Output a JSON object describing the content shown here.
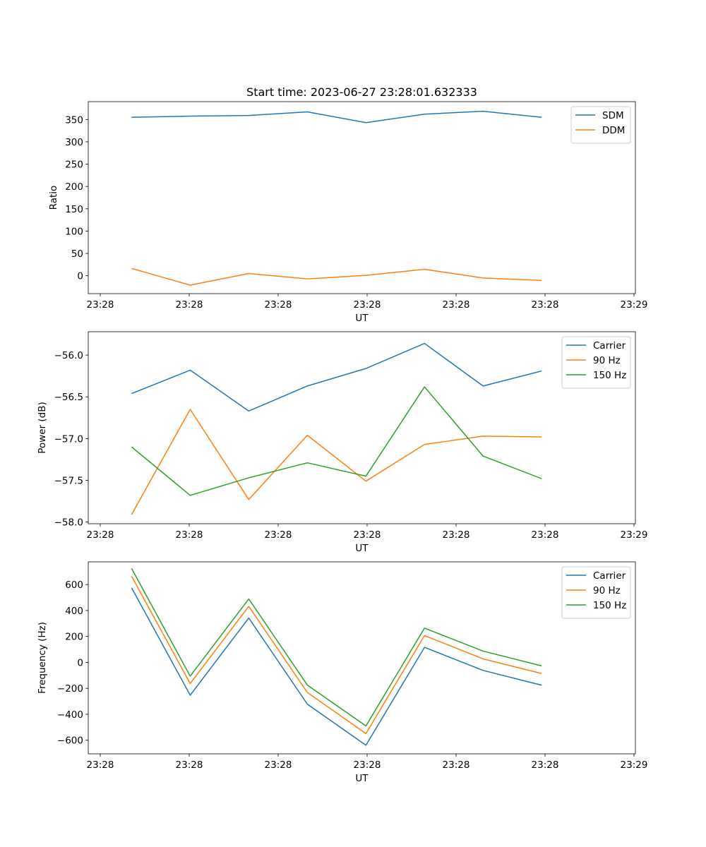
{
  "figure": {
    "title": "Start time: 2023-06-27 23:28:01.632333"
  },
  "chart_data": [
    {
      "type": "line",
      "title": "Start time: 2023-06-27 23:28:01.632333",
      "xlabel": "UT",
      "ylabel": "Ratio",
      "x_tick_labels": [
        "23:28",
        "23:28",
        "23:28",
        "23:28",
        "23:28",
        "23:28",
        "23:28"
      ],
      "x_tick_positions": [
        -0.25,
        0.75,
        1.75,
        2.75,
        3.75,
        4.75,
        5.75
      ],
      "x_last_tick_label": "23:29",
      "xlim": [
        -0.74,
        8.6
      ],
      "ylim": [
        -40,
        390
      ],
      "y_ticks": [
        0,
        50,
        100,
        150,
        200,
        250,
        300,
        350
      ],
      "x": [
        0,
        1,
        2,
        3,
        4,
        5,
        6,
        7
      ],
      "legend_position": "top-right",
      "series": [
        {
          "name": "SDM",
          "color": "#1f77b4",
          "values": [
            355,
            357.5,
            359,
            367,
            343,
            362,
            368.5,
            355
          ]
        },
        {
          "name": "DDM",
          "color": "#ff7f0e",
          "values": [
            16.5,
            -21,
            5,
            -7,
            1,
            14.5,
            -5,
            -10.5
          ]
        }
      ]
    },
    {
      "type": "line",
      "xlabel": "UT",
      "ylabel": "Power (dB)",
      "x_tick_labels": [
        "23:28",
        "23:28",
        "23:28",
        "23:28",
        "23:28",
        "23:28",
        "23:28"
      ],
      "x_last_tick_label": "23:29",
      "xlim": [
        -0.74,
        8.6
      ],
      "ylim": [
        -58.02,
        -55.72
      ],
      "y_ticks": [
        -58.0,
        -57.5,
        -57.0,
        -56.5,
        -56.0
      ],
      "y_tick_labels": [
        "−58.0",
        "−57.5",
        "−57.0",
        "−56.5",
        "−56.0"
      ],
      "x": [
        0,
        1,
        2,
        3,
        4,
        5,
        6,
        7
      ],
      "legend_position": "top-right",
      "series": [
        {
          "name": "Carrier",
          "color": "#1f77b4",
          "values": [
            -56.46,
            -56.18,
            -56.67,
            -56.37,
            -56.16,
            -55.86,
            -56.37,
            -56.19
          ]
        },
        {
          "name": "90 Hz",
          "color": "#ff7f0e",
          "values": [
            -57.91,
            -56.65,
            -57.73,
            -56.96,
            -57.51,
            -57.07,
            -56.97,
            -56.98
          ]
        },
        {
          "name": "150 Hz",
          "color": "#2ca02c",
          "values": [
            -57.1,
            -57.68,
            -57.47,
            -57.29,
            -57.45,
            -56.38,
            -57.21,
            -57.48
          ]
        }
      ]
    },
    {
      "type": "line",
      "xlabel": "UT",
      "ylabel": "Frequency (Hz)",
      "x_tick_labels": [
        "23:28",
        "23:28",
        "23:28",
        "23:28",
        "23:28",
        "23:28",
        "23:28"
      ],
      "x_last_tick_label": "23:29",
      "xlim": [
        -0.74,
        8.6
      ],
      "ylim": [
        -705,
        775
      ],
      "y_ticks": [
        -600,
        -400,
        -200,
        0,
        200,
        400,
        600
      ],
      "y_tick_labels": [
        "−600",
        "−400",
        "−200",
        "0",
        "200",
        "400",
        "600"
      ],
      "x": [
        0,
        1,
        2,
        3,
        4,
        5,
        6,
        7
      ],
      "legend_position": "top-right",
      "series": [
        {
          "name": "Carrier",
          "color": "#1f77b4",
          "values": [
            575,
            -253,
            342,
            -322,
            -639,
            116,
            -62,
            -176
          ]
        },
        {
          "name": "90 Hz",
          "color": "#ff7f0e",
          "values": [
            664,
            -163,
            432,
            -232,
            -549,
            207,
            27,
            -86
          ]
        },
        {
          "name": "150 Hz",
          "color": "#2ca02c",
          "values": [
            724,
            -106,
            489,
            -175,
            -490,
            264,
            87,
            -27
          ]
        }
      ]
    }
  ]
}
